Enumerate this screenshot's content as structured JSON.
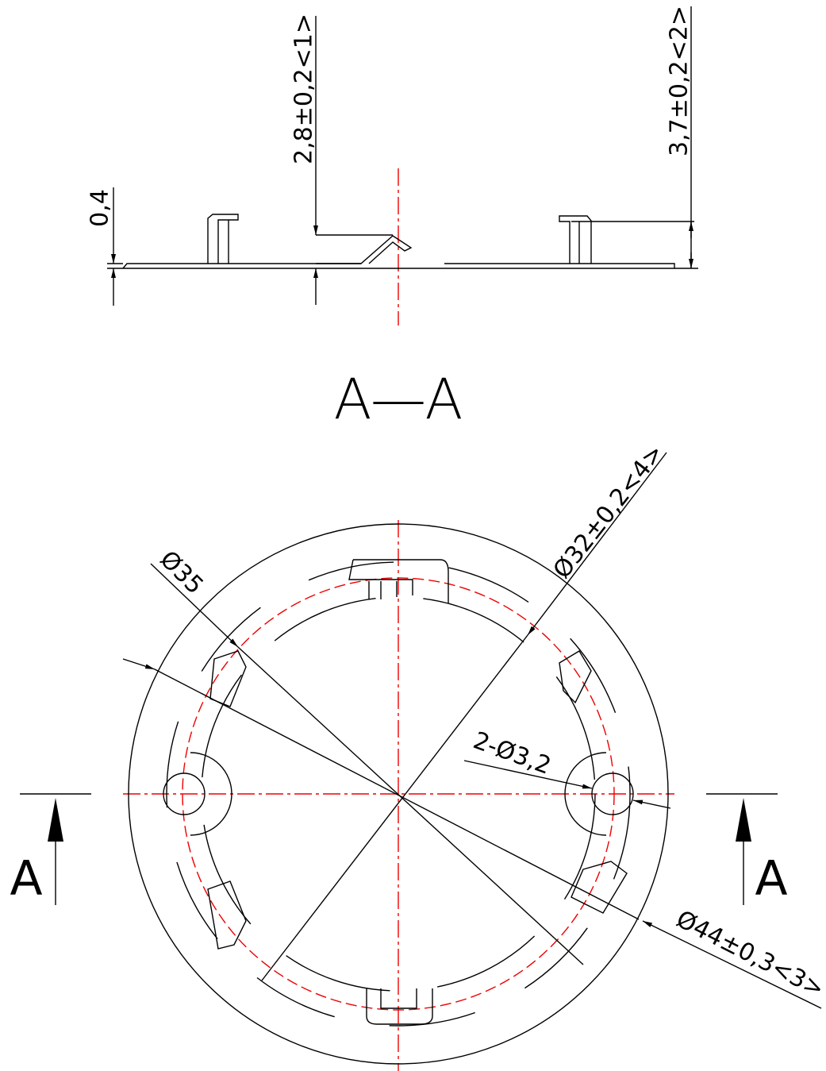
{
  "dimensions": {
    "side_bend_height": "2,8±0,2<1>",
    "side_tab_height": "3,7±0,2<2>",
    "thickness": "0,4",
    "diameter_35": "Ø35",
    "diameter_32": "Ø32±0,2<4>",
    "holes": "2-Ø3,2",
    "diameter_44": "Ø44±0,3<3>"
  },
  "section_title": "A—A",
  "section_markers": [
    "A",
    "A"
  ]
}
